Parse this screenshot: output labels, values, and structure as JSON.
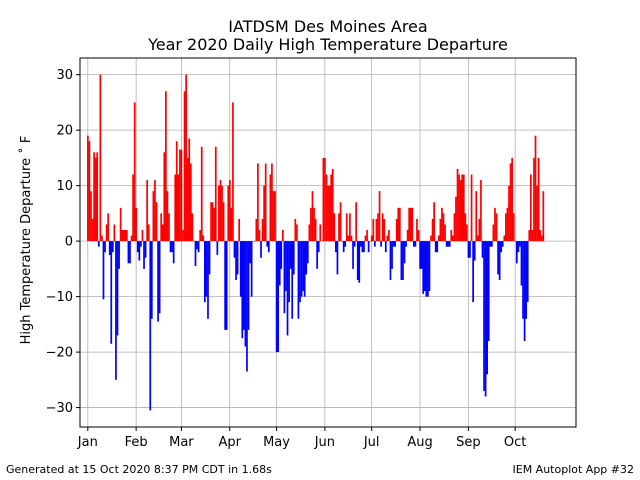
{
  "chart_data": {
    "type": "bar",
    "title": "IATDSM Des Moines Area",
    "subtitle": "Year 2020 Daily High Temperature Departure",
    "xlabel": "",
    "ylabel": "High Temperature Departure ˚ F",
    "ylim": [
      -33.5,
      33
    ],
    "yticks": [
      -30,
      -20,
      -10,
      0,
      10,
      20,
      30
    ],
    "ytick_labels": [
      "−30",
      "−20",
      "−10",
      "0",
      "10",
      "20",
      "30"
    ],
    "xlim_days": [
      -5,
      313
    ],
    "xticks": [
      {
        "label": "Jan",
        "day": 0
      },
      {
        "label": "Feb",
        "day": 31
      },
      {
        "label": "Mar",
        "day": 60
      },
      {
        "label": "Apr",
        "day": 91
      },
      {
        "label": "May",
        "day": 121
      },
      {
        "label": "Jun",
        "day": 152
      },
      {
        "label": "Jul",
        "day": 182
      },
      {
        "label": "Aug",
        "day": 213
      },
      {
        "label": "Sep",
        "day": 244
      },
      {
        "label": "Oct",
        "day": 274
      }
    ],
    "grid": true,
    "positive_color": "#ff0000",
    "negative_color": "#0000ff",
    "start_date": "2020-01-01",
    "values": [
      19,
      18,
      9,
      4,
      16,
      15,
      16,
      -1,
      30,
      1,
      -10.5,
      -2,
      3,
      5,
      -2.5,
      -18.5,
      -2,
      3,
      -25,
      -17,
      -5,
      6,
      2,
      2,
      2,
      2,
      -4,
      -4,
      1,
      12,
      25,
      6,
      -2,
      -3.5,
      -1,
      2,
      -5,
      -3,
      11,
      3,
      -30.5,
      -14,
      9,
      11,
      7,
      -14.5,
      -13,
      5,
      3,
      16,
      27,
      9,
      5,
      -2,
      -2,
      -4,
      12,
      18,
      12,
      16.5,
      16.5,
      2,
      27,
      30,
      15,
      18.5,
      14,
      5,
      0,
      -4.5,
      -1.5,
      -2,
      2,
      17,
      1,
      -11,
      -10,
      -14,
      -6,
      7,
      7,
      6,
      17,
      -2.5,
      10,
      11,
      10,
      7,
      -16,
      -16,
      10,
      11,
      6,
      25,
      -3,
      -7,
      -6,
      4,
      -10,
      -17.5,
      -16,
      -19,
      -23.5,
      -16,
      -4,
      -10,
      0,
      0,
      4,
      14,
      2,
      -3,
      4,
      10,
      14,
      -1,
      -2,
      12,
      14,
      9,
      9,
      -20,
      -20,
      -8,
      -5,
      2,
      -13,
      -9,
      -17,
      -11,
      -5,
      -14,
      -6,
      4,
      3,
      -14,
      -11,
      -10,
      -9,
      -10,
      -6,
      -4,
      3,
      6,
      9,
      6,
      4,
      -5,
      -2,
      3,
      0,
      15,
      15,
      12,
      10,
      10,
      12,
      13,
      5,
      -2,
      -6,
      5,
      7,
      0,
      -2,
      -1,
      5,
      1,
      5,
      1,
      -5,
      -1,
      7,
      -7,
      -7.5,
      -1,
      -2,
      -2,
      1,
      2,
      -2,
      0,
      1,
      4,
      -1,
      4,
      5,
      9,
      -1,
      5,
      4,
      -2,
      1,
      2,
      -7,
      -5,
      -1,
      -1,
      4,
      6,
      6,
      -7,
      -7,
      -4,
      -1,
      2,
      6,
      6,
      6,
      -1,
      -1,
      4,
      2,
      -5,
      -5,
      -9.5,
      -9,
      -10,
      -10,
      -9,
      1,
      4,
      7,
      -2,
      -2,
      1,
      4,
      6,
      5,
      3,
      -1,
      -1,
      -1,
      2,
      1,
      5,
      8,
      13,
      12,
      11,
      12,
      12,
      5,
      3,
      -3,
      -3,
      12,
      -11,
      -3.5,
      9,
      1,
      4,
      11,
      -3,
      -27,
      -28,
      -24,
      -18,
      -1,
      -1,
      3,
      6,
      5,
      -6,
      -7,
      -2,
      -1,
      1,
      5,
      6,
      10,
      14,
      15,
      5,
      0,
      -4,
      -2,
      -1,
      -8,
      -14,
      -18,
      -14,
      -11,
      2,
      12,
      2,
      15,
      19,
      10,
      15,
      2,
      1,
      9
    ]
  },
  "footer": {
    "left": "Generated at 15 Oct 2020 8:37 PM CDT in 1.68s",
    "right": "IEM Autoplot App #32"
  }
}
